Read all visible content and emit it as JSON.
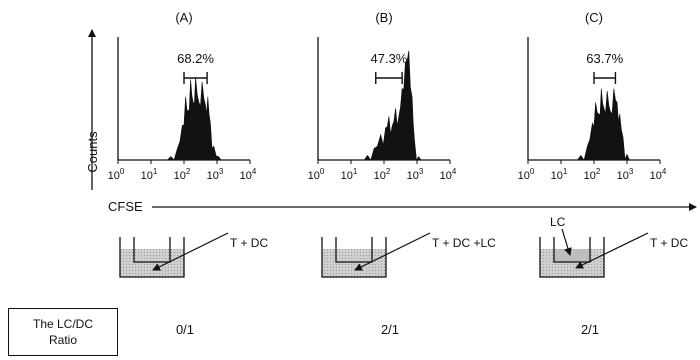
{
  "panels": [
    {
      "label": "(A)",
      "percent": "68.2%",
      "gate": [
        2.0,
        2.7
      ],
      "histogram": [
        [
          1.4,
          0
        ],
        [
          1.6,
          0.03
        ],
        [
          1.8,
          0.1
        ],
        [
          1.95,
          0.3
        ],
        [
          2.05,
          0.55
        ],
        [
          2.12,
          0.42
        ],
        [
          2.2,
          0.7
        ],
        [
          2.28,
          0.5
        ],
        [
          2.35,
          0.72
        ],
        [
          2.45,
          0.5
        ],
        [
          2.55,
          0.68
        ],
        [
          2.65,
          0.48
        ],
        [
          2.72,
          0.55
        ],
        [
          2.8,
          0.32
        ],
        [
          2.9,
          0.12
        ],
        [
          3.05,
          0.03
        ],
        [
          3.2,
          0
        ]
      ],
      "well_label": "T + DC",
      "ratio": "0/1"
    },
    {
      "label": "(B)",
      "percent": "47.3%",
      "gate": [
        1.75,
        2.55
      ],
      "histogram": [
        [
          1.3,
          0
        ],
        [
          1.5,
          0.04
        ],
        [
          1.7,
          0.1
        ],
        [
          1.9,
          0.22
        ],
        [
          2.05,
          0.28
        ],
        [
          2.15,
          0.38
        ],
        [
          2.25,
          0.3
        ],
        [
          2.35,
          0.45
        ],
        [
          2.45,
          0.38
        ],
        [
          2.55,
          0.62
        ],
        [
          2.65,
          0.85
        ],
        [
          2.75,
          0.95
        ],
        [
          2.85,
          0.55
        ],
        [
          2.92,
          0.18
        ],
        [
          3.05,
          0.03
        ],
        [
          3.2,
          0
        ]
      ],
      "well_label": "T + DC +LC",
      "ratio": "2/1"
    },
    {
      "label": "(C)",
      "percent": "63.7%",
      "gate": [
        2.0,
        2.65
      ],
      "histogram": [
        [
          1.4,
          0
        ],
        [
          1.6,
          0.04
        ],
        [
          1.8,
          0.12
        ],
        [
          1.95,
          0.32
        ],
        [
          2.05,
          0.5
        ],
        [
          2.15,
          0.4
        ],
        [
          2.22,
          0.62
        ],
        [
          2.3,
          0.45
        ],
        [
          2.4,
          0.6
        ],
        [
          2.5,
          0.42
        ],
        [
          2.6,
          0.62
        ],
        [
          2.7,
          0.5
        ],
        [
          2.78,
          0.4
        ],
        [
          2.88,
          0.2
        ],
        [
          3.0,
          0.05
        ],
        [
          3.15,
          0
        ]
      ],
      "well_label": "T + DC",
      "insert_label": "LC",
      "ratio": "2/1"
    }
  ],
  "x_axis": {
    "log_range": [
      0,
      4
    ],
    "ticks": [
      {
        "base": "10",
        "exp": "0"
      },
      {
        "base": "10",
        "exp": "1"
      },
      {
        "base": "10",
        "exp": "2"
      },
      {
        "base": "10",
        "exp": "3"
      },
      {
        "base": "10",
        "exp": "4"
      }
    ]
  },
  "y_axis_label": "Counts",
  "shared_axis_label": "CFSE",
  "ratio_header": "The LC/DC Ratio"
}
